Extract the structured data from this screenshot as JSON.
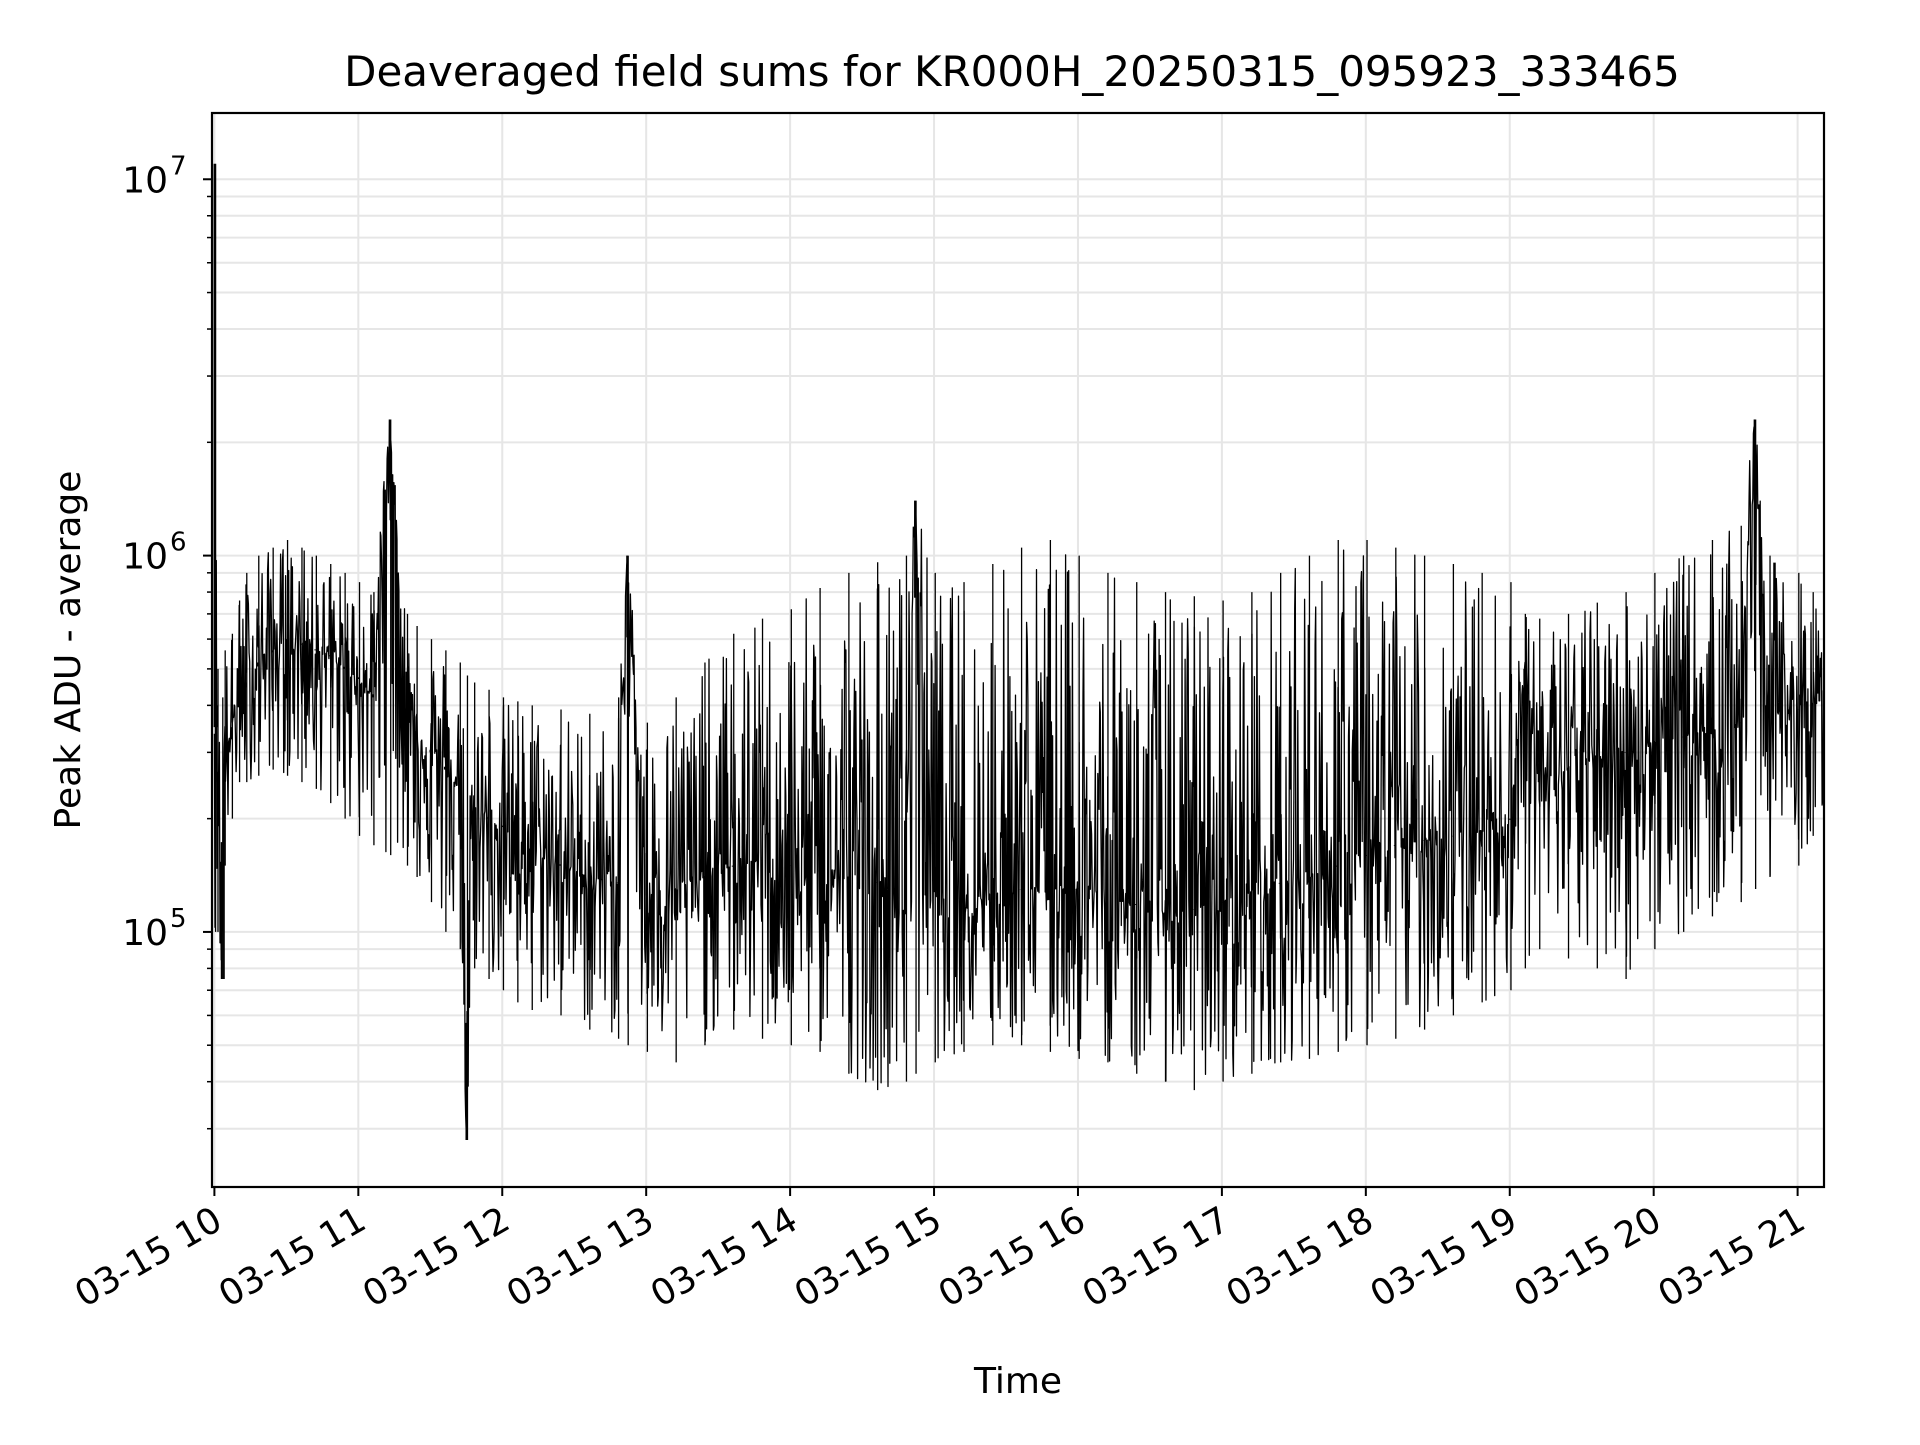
{
  "chart_data": {
    "type": "line",
    "title": "Deaveraged field sums for KR000H_20250315_095923_333465",
    "xlabel": "Time",
    "ylabel": "Peak ADU - average",
    "yscale": "log",
    "ylim": [
      21000,
      15000000
    ],
    "xlim": [
      "2025-03-15 09:59",
      "2025-03-15 21:11"
    ],
    "grid": true,
    "grid_minor": true,
    "line_color": "#000000",
    "x_ticks": [
      {
        "time": "2025-03-15 10:00",
        "label": "03-15 10"
      },
      {
        "time": "2025-03-15 11:00",
        "label": "03-15 11"
      },
      {
        "time": "2025-03-15 12:00",
        "label": "03-15 12"
      },
      {
        "time": "2025-03-15 13:00",
        "label": "03-15 13"
      },
      {
        "time": "2025-03-15 14:00",
        "label": "03-15 14"
      },
      {
        "time": "2025-03-15 15:00",
        "label": "03-15 15"
      },
      {
        "time": "2025-03-15 16:00",
        "label": "03-15 16"
      },
      {
        "time": "2025-03-15 17:00",
        "label": "03-15 17"
      },
      {
        "time": "2025-03-15 18:00",
        "label": "03-15 18"
      },
      {
        "time": "2025-03-15 19:00",
        "label": "03-15 19"
      },
      {
        "time": "2025-03-15 20:00",
        "label": "03-15 20"
      },
      {
        "time": "2025-03-15 21:00",
        "label": "03-15 21"
      }
    ],
    "y_ticks": [
      {
        "value": 100000,
        "base": "10",
        "exp": "5"
      },
      {
        "value": 1000000,
        "base": "10",
        "exp": "6"
      },
      {
        "value": 10000000,
        "base": "10",
        "exp": "7"
      }
    ],
    "series": [
      {
        "x": [
          "2025-03-15 10:00",
          "2025-03-15 10:00",
          "2025-03-15 10:01",
          "2025-03-15 10:03",
          "2025-03-15 10:04",
          "2025-03-15 10:07",
          "2025-03-15 10:10",
          "2025-03-15 10:13",
          "2025-03-15 10:18",
          "2025-03-15 10:24",
          "2025-03-15 10:30",
          "2025-03-15 10:36",
          "2025-03-15 10:42",
          "2025-03-15 10:48",
          "2025-03-15 10:54",
          "2025-03-15 11:00",
          "2025-03-15 11:06",
          "2025-03-15 11:13",
          "2025-03-15 11:20",
          "2025-03-15 11:24",
          "2025-03-15 11:30",
          "2025-03-15 11:36",
          "2025-03-15 11:42",
          "2025-03-15 11:45",
          "2025-03-15 11:48",
          "2025-03-15 11:54",
          "2025-03-15 12:00",
          "2025-03-15 12:06",
          "2025-03-15 12:12",
          "2025-03-15 12:24",
          "2025-03-15 12:36",
          "2025-03-15 12:48",
          "2025-03-15 12:52",
          "2025-03-15 13:00",
          "2025-03-15 13:12",
          "2025-03-15 13:24",
          "2025-03-15 13:36",
          "2025-03-15 13:48",
          "2025-03-15 14:00",
          "2025-03-15 14:12",
          "2025-03-15 14:24",
          "2025-03-15 14:36",
          "2025-03-15 14:48",
          "2025-03-15 14:52",
          "2025-03-15 15:00",
          "2025-03-15 15:12",
          "2025-03-15 15:24",
          "2025-03-15 15:36",
          "2025-03-15 15:48",
          "2025-03-15 16:00",
          "2025-03-15 16:12",
          "2025-03-15 16:24",
          "2025-03-15 16:36",
          "2025-03-15 16:48",
          "2025-03-15 17:00",
          "2025-03-15 17:12",
          "2025-03-15 17:24",
          "2025-03-15 17:36",
          "2025-03-15 17:48",
          "2025-03-15 18:00",
          "2025-03-15 18:12",
          "2025-03-15 18:24",
          "2025-03-15 18:36",
          "2025-03-15 18:48",
          "2025-03-15 19:00",
          "2025-03-15 19:06",
          "2025-03-15 19:12",
          "2025-03-15 19:24",
          "2025-03-15 19:36",
          "2025-03-15 19:48",
          "2025-03-15 20:00",
          "2025-03-15 20:12",
          "2025-03-15 20:24",
          "2025-03-15 20:36",
          "2025-03-15 20:42",
          "2025-03-15 20:48",
          "2025-03-15 21:00",
          "2025-03-15 21:06",
          "2025-03-15 21:11"
        ],
        "y": [
          350000,
          11000000,
          400000,
          75000,
          280000,
          350000,
          420000,
          460000,
          520000,
          560000,
          600000,
          580000,
          560000,
          540000,
          500000,
          470000,
          420000,
          2300000,
          380000,
          330000,
          300000,
          270000,
          240000,
          28000,
          210000,
          200000,
          190000,
          175000,
          165000,
          150000,
          140000,
          135000,
          1000000,
          125000,
          130000,
          140000,
          150000,
          155000,
          150000,
          145000,
          140000,
          135000,
          130000,
          1400000,
          128000,
          125000,
          128000,
          130000,
          135000,
          130000,
          125000,
          118000,
          112000,
          115000,
          120000,
          128000,
          135000,
          140000,
          150000,
          160000,
          170000,
          175000,
          180000,
          185000,
          200000,
          500000,
          250000,
          270000,
          290000,
          300000,
          320000,
          330000,
          345000,
          360000,
          2300000,
          380000,
          390000,
          400000,
          420000
        ],
        "envelope_high": [
          450000,
          11000000,
          500000,
          420000,
          560000,
          620000,
          760000,
          900000,
          1000000,
          1050000,
          1100000,
          1050000,
          1000000,
          950000,
          900000,
          850000,
          800000,
          2300000,
          700000,
          650000,
          600000,
          560000,
          520000,
          480000,
          460000,
          440000,
          420000,
          410000,
          400000,
          390000,
          380000,
          370000,
          1000000,
          360000,
          420000,
          520000,
          620000,
          680000,
          720000,
          820000,
          900000,
          960000,
          1000000,
          1400000,
          900000,
          850000,
          950000,
          1050000,
          1100000,
          1000000,
          900000,
          850000,
          800000,
          780000,
          760000,
          800000,
          900000,
          1000000,
          1100000,
          1100000,
          1050000,
          1000000,
          950000,
          900000,
          850000,
          700000,
          680000,
          700000,
          750000,
          800000,
          900000,
          1000000,
          1100000,
          1200000,
          2300000,
          1000000,
          900000,
          800000,
          700000
        ],
        "envelope_low": [
          250000,
          100000,
          100000,
          75000,
          150000,
          200000,
          250000,
          250000,
          260000,
          270000,
          260000,
          250000,
          240000,
          220000,
          200000,
          180000,
          170000,
          160000,
          150000,
          140000,
          120000,
          100000,
          90000,
          28000,
          80000,
          75000,
          70000,
          65000,
          62000,
          60000,
          55000,
          52000,
          50000,
          48000,
          45000,
          50000,
          55000,
          52000,
          50000,
          48000,
          42000,
          38000,
          40000,
          42000,
          45000,
          48000,
          50000,
          50000,
          48000,
          46000,
          45000,
          42000,
          40000,
          38000,
          40000,
          42000,
          45000,
          46000,
          48000,
          50000,
          52000,
          55000,
          60000,
          65000,
          70000,
          80000,
          90000,
          85000,
          80000,
          75000,
          90000,
          100000,
          110000,
          120000,
          130000,
          140000,
          150000,
          180000,
          200000
        ]
      }
    ]
  }
}
